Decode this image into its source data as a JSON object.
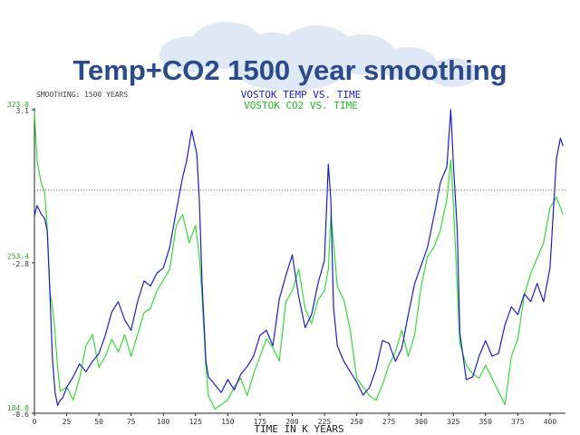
{
  "slide": {
    "title": "Temp+CO2 1500 year smoothing"
  },
  "colors": {
    "title": "#2b4a8b",
    "temp": "#1c1ccc",
    "co2": "#33dd33",
    "axis": "#222222"
  },
  "chart_data": {
    "type": "line",
    "smoothing_label": "SMOOTHING: 1500 YEARS",
    "title_temp": "VOSTOK TEMP VS. TIME",
    "title_co2": "VOSTOK CO2 VS. TIME",
    "xlabel": "TIME IN K YEARS",
    "xlim": [
      0,
      412
    ],
    "x_ticks": [
      0,
      25,
      50,
      75,
      100,
      125,
      150,
      175,
      200,
      225,
      250,
      275,
      300,
      325,
      350,
      375,
      400
    ],
    "temp_axis": {
      "ylim": [
        -8.6,
        3.1
      ],
      "tick_labels": [
        "3.1",
        "-2.8",
        "-8.6"
      ]
    },
    "co2_axis": {
      "ylim": [
        184.0,
        323.0
      ],
      "tick_labels": [
        "323.0",
        "253.4",
        "184.0"
      ]
    },
    "reference_line_temp": 0.0,
    "series": [
      {
        "key": "temp",
        "x": [
          0,
          2,
          5,
          8,
          10,
          12,
          14,
          16,
          18,
          20,
          22,
          25,
          30,
          35,
          40,
          45,
          50,
          55,
          60,
          65,
          70,
          75,
          80,
          85,
          90,
          95,
          100,
          105,
          110,
          115,
          118,
          122,
          126,
          128,
          130,
          133,
          135,
          140,
          145,
          150,
          155,
          160,
          165,
          170,
          175,
          180,
          185,
          190,
          195,
          200,
          205,
          210,
          215,
          220,
          225,
          228,
          230,
          232,
          235,
          240,
          245,
          250,
          255,
          260,
          265,
          270,
          275,
          280,
          285,
          290,
          295,
          300,
          305,
          310,
          315,
          320,
          323,
          325,
          328,
          330,
          335,
          340,
          345,
          350,
          355,
          360,
          365,
          370,
          375,
          380,
          385,
          390,
          395,
          400,
          405,
          408,
          410
        ],
        "values": [
          -1.0,
          -0.6,
          -0.9,
          -1.1,
          -1.6,
          -4.0,
          -6.5,
          -7.8,
          -8.3,
          -8.1,
          -8.0,
          -7.6,
          -7.2,
          -6.7,
          -7.0,
          -6.6,
          -6.3,
          -5.6,
          -4.7,
          -4.3,
          -5.0,
          -5.4,
          -4.3,
          -3.5,
          -3.7,
          -3.2,
          -3.0,
          -2.2,
          -0.8,
          0.5,
          1.1,
          2.3,
          1.4,
          -0.5,
          -3.5,
          -6.6,
          -7.2,
          -7.5,
          -7.8,
          -7.3,
          -7.7,
          -7.1,
          -6.8,
          -6.4,
          -5.6,
          -5.4,
          -6.0,
          -4.2,
          -3.3,
          -2.5,
          -4.1,
          -5.3,
          -4.8,
          -3.6,
          -2.7,
          1.0,
          -0.4,
          -4.5,
          -6.0,
          -6.6,
          -7.0,
          -7.4,
          -7.9,
          -7.6,
          -6.9,
          -5.8,
          -5.9,
          -6.6,
          -6.1,
          -4.8,
          -3.6,
          -2.9,
          -2.2,
          -1.0,
          0.3,
          0.9,
          3.1,
          1.0,
          -1.5,
          -5.5,
          -7.3,
          -7.2,
          -6.4,
          -5.8,
          -6.4,
          -6.3,
          -5.2,
          -4.5,
          -4.8,
          -4.0,
          -4.3,
          -3.6,
          -4.3,
          -3.0,
          1.2,
          2.0,
          1.7
        ]
      },
      {
        "key": "co2",
        "x": [
          0,
          2,
          5,
          8,
          10,
          12,
          15,
          18,
          20,
          25,
          30,
          35,
          40,
          45,
          50,
          55,
          60,
          65,
          70,
          75,
          80,
          85,
          90,
          95,
          100,
          105,
          110,
          115,
          120,
          125,
          128,
          130,
          133,
          135,
          140,
          145,
          150,
          155,
          160,
          165,
          170,
          175,
          180,
          185,
          190,
          195,
          200,
          205,
          210,
          215,
          220,
          225,
          228,
          230,
          232,
          235,
          240,
          245,
          250,
          255,
          260,
          265,
          270,
          275,
          280,
          285,
          290,
          295,
          300,
          305,
          310,
          315,
          320,
          323,
          325,
          328,
          330,
          335,
          340,
          345,
          350,
          355,
          360,
          365,
          370,
          375,
          380,
          385,
          390,
          395,
          400,
          405,
          410
        ],
        "values": [
          322,
          300,
          290,
          285,
          268,
          240,
          228,
          205,
          194,
          196,
          190,
          200,
          215,
          220,
          205,
          210,
          218,
          212,
          220,
          210,
          220,
          230,
          232,
          240,
          245,
          250,
          270,
          275,
          262,
          270,
          255,
          238,
          205,
          192,
          186,
          188,
          190,
          196,
          200,
          192,
          202,
          210,
          218,
          214,
          208,
          235,
          240,
          250,
          232,
          225,
          236,
          240,
          250,
          275,
          262,
          242,
          236,
          222,
          200,
          196,
          192,
          190,
          197,
          206,
          212,
          222,
          210,
          220,
          242,
          256,
          260,
          268,
          282,
          300,
          280,
          242,
          216,
          206,
          202,
          200,
          206,
          200,
          194,
          188,
          210,
          218,
          238,
          248,
          255,
          262,
          278,
          283,
          275
        ]
      }
    ]
  }
}
